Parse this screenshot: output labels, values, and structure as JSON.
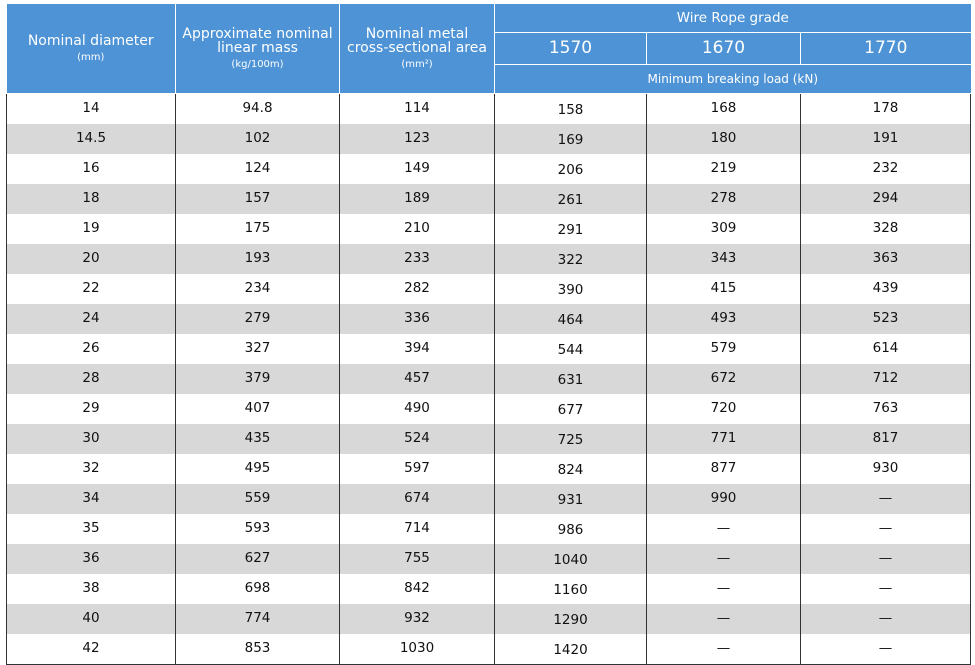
{
  "table": {
    "headers": {
      "diameter": {
        "label": "Nominal diameter",
        "unit": "(mm)"
      },
      "mass": {
        "label": "Approximate nominal linear mass",
        "unit": "(kg/100m)"
      },
      "area": {
        "label": "Nominal metal cross-sectional area",
        "unit": "(mm²)"
      },
      "grade_title": "Wire Rope grade",
      "grades": [
        "1570",
        "1670",
        "1770"
      ],
      "min_break": "Minimum breaking load (kN)"
    },
    "rows": [
      [
        "14",
        "94.8",
        "114",
        "158",
        "168",
        "178"
      ],
      [
        "14.5",
        "102",
        "123",
        "169",
        "180",
        "191"
      ],
      [
        "16",
        "124",
        "149",
        "206",
        "219",
        "232"
      ],
      [
        "18",
        "157",
        "189",
        "261",
        "278",
        "294"
      ],
      [
        "19",
        "175",
        "210",
        "291",
        "309",
        "328"
      ],
      [
        "20",
        "193",
        "233",
        "322",
        "343",
        "363"
      ],
      [
        "22",
        "234",
        "282",
        "390",
        "415",
        "439"
      ],
      [
        "24",
        "279",
        "336",
        "464",
        "493",
        "523"
      ],
      [
        "26",
        "327",
        "394",
        "544",
        "579",
        "614"
      ],
      [
        "28",
        "379",
        "457",
        "631",
        "672",
        "712"
      ],
      [
        "29",
        "407",
        "490",
        "677",
        "720",
        "763"
      ],
      [
        "30",
        "435",
        "524",
        "725",
        "771",
        "817"
      ],
      [
        "32",
        "495",
        "597",
        "824",
        "877",
        "930"
      ],
      [
        "34",
        "559",
        "674",
        "931",
        "990",
        "—"
      ],
      [
        "35",
        "593",
        "714",
        "986",
        "—",
        "—"
      ],
      [
        "36",
        "627",
        "755",
        "1040",
        "—",
        "—"
      ],
      [
        "38",
        "698",
        "842",
        "1160",
        "—",
        "—"
      ],
      [
        "40",
        "774",
        "932",
        "1290",
        "—",
        "—"
      ],
      [
        "42",
        "853",
        "1030",
        "1420",
        "—",
        "—"
      ]
    ]
  },
  "colors": {
    "header_bg": "#4d93d6",
    "stripe_bg": "#d8d8d8",
    "border": "#333333"
  }
}
